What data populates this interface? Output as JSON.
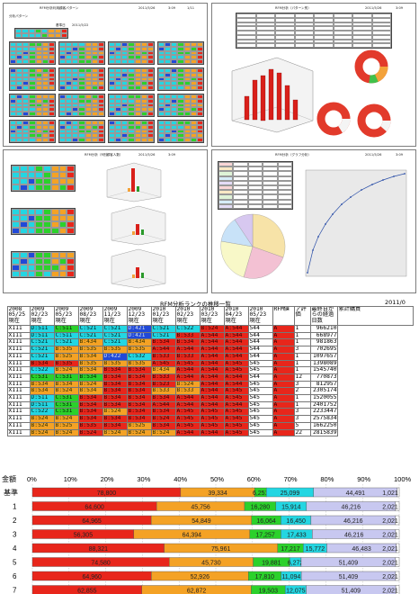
{
  "panels": {
    "p1": {
      "title": "RFM分析利用顧客パターン",
      "date": "2011/5/26",
      "time": "3:09",
      "page": "1/11",
      "subtitle": "分析パターン",
      "base_date_label": "基準日",
      "base_date": "2011/5/22"
    },
    "p2": {
      "title": "RFM分析（パターン別）",
      "date": "2011/5/26",
      "time": "3:09"
    },
    "p3": {
      "title": "RFM分析（R別顧客人数）",
      "date": "2011/5/26",
      "time": "3:09"
    },
    "p4": {
      "title": "RFM分析（グラフ分析）",
      "date": "2011/5/26",
      "time": "3:09"
    }
  },
  "bigtable": {
    "title": "RFM分析ランクの推移一覧",
    "year_right": "2011/0",
    "headers": [
      {
        "y": "2008",
        "d": "05/25",
        "s": "現在"
      },
      {
        "y": "2009",
        "d": "02/23",
        "s": "現在"
      },
      {
        "y": "2009",
        "d": "05/23",
        "s": "現在"
      },
      {
        "y": "2009",
        "d": "08/23",
        "s": "現在"
      },
      {
        "y": "2009",
        "d": "11/23",
        "s": "現在"
      },
      {
        "y": "2009",
        "d": "12/23",
        "s": "現在"
      },
      {
        "y": "2010",
        "d": "01/23",
        "s": "現在"
      },
      {
        "y": "2010",
        "d": "02/23",
        "s": "現在"
      },
      {
        "y": "2010",
        "d": "03/23",
        "s": "現在"
      },
      {
        "y": "2010",
        "d": "04/23",
        "s": "現在"
      },
      {
        "y": "2010",
        "d": "05/23",
        "s": "現在"
      }
    ],
    "rfm_header": "RFM値",
    "ext_header": "ア評価",
    "days_header": "最終日からの経過日数",
    "total_header": "累計購買",
    "rows": [
      [
        "X111",
        "D:511",
        "C:511",
        "C:521",
        "C:521",
        "D:421",
        "C:521",
        "C:522",
        "B:524",
        "A:544",
        "544",
        "A",
        "1",
        "966210"
      ],
      [
        "X111",
        "D:511",
        "C:511",
        "C:521",
        "C:521",
        "D:421",
        "C:521",
        "B:533",
        "A:544",
        "A:544",
        "544",
        "A",
        "1",
        "668977"
      ],
      [
        "X111",
        "C:521",
        "C:521",
        "B:434",
        "C:521",
        "B:434",
        "B:534",
        "B:534",
        "A:544",
        "A:544",
        "544",
        "A",
        "1",
        "981863"
      ],
      [
        "X111",
        "C:521",
        "B:535",
        "B:535",
        "B:535",
        "B:535",
        "A:544",
        "A:544",
        "A:544",
        "A:544",
        "544",
        "A",
        "3",
        "702695"
      ],
      [
        "X111",
        "C:521",
        "B:525",
        "B:534",
        "D:422",
        "C:532",
        "B:533",
        "B:533",
        "A:544",
        "A:544",
        "544",
        "A",
        "1",
        "1097657"
      ],
      [
        "X111",
        "B:534",
        "B:535",
        "B:535",
        "B:535",
        "B:535",
        "A:545",
        "A:545",
        "A:544",
        "A:545",
        "545",
        "A",
        "1",
        "1398089"
      ],
      [
        "X111",
        "C:522",
        "B:524",
        "B:534",
        "B:534",
        "B:534",
        "B:434",
        "A:544",
        "A:544",
        "A:545",
        "545",
        "A",
        "1",
        "1545740"
      ],
      [
        "X111",
        "C:531",
        "C:531",
        "B:534",
        "B:534",
        "B:534",
        "B:533",
        "A:544",
        "A:544",
        "A:544",
        "544",
        "A",
        "12",
        "770873"
      ],
      [
        "X111",
        "B:534",
        "B:534",
        "B:524",
        "B:534",
        "B:534",
        "B:523",
        "B:524",
        "A:544",
        "A:544",
        "545",
        "A",
        "3",
        "812957"
      ],
      [
        "X111",
        "B:534",
        "B:524",
        "B:534",
        "B:534",
        "B:534",
        "B:533",
        "B:533",
        "A:544",
        "A:545",
        "545",
        "A",
        "2",
        "2305174"
      ],
      [
        "X111",
        "D:511",
        "C:531",
        "B:534",
        "B:534",
        "B:534",
        "B:534",
        "A:544",
        "A:544",
        "A:545",
        "545",
        "A",
        "1",
        "1520055"
      ],
      [
        "X111",
        "D:511",
        "C:531",
        "B:534",
        "B:534",
        "B:534",
        "A:544",
        "A:544",
        "A:544",
        "A:544",
        "545",
        "A",
        "1",
        "2401752"
      ],
      [
        "X111",
        "C:522",
        "C:531",
        "B:534",
        "B:524",
        "B:534",
        "B:534",
        "A:545",
        "A:545",
        "A:545",
        "545",
        "A",
        "3",
        "2233447"
      ],
      [
        "X111",
        "B:524",
        "B:524",
        "B:534",
        "B:534",
        "B:534",
        "B:524",
        "A:545",
        "A:545",
        "A:545",
        "545",
        "A",
        "3",
        "2575834"
      ],
      [
        "X111",
        "B:524",
        "B:525",
        "B:535",
        "B:534",
        "B:525",
        "B:534",
        "A:545",
        "A:545",
        "A:545",
        "545",
        "A",
        "5",
        "1662250"
      ],
      [
        "X111",
        "B:524",
        "B:524",
        "B:524",
        "B:524",
        "B:524",
        "B:524",
        "A:544",
        "A:544",
        "A:545",
        "545",
        "A",
        "22",
        "2815839"
      ]
    ],
    "row_colors": [
      [
        "w",
        "c",
        "g",
        "c",
        "c",
        "b",
        "c",
        "c",
        "r",
        "r",
        "w",
        "r",
        "w",
        "w"
      ],
      [
        "w",
        "c",
        "c",
        "c",
        "c",
        "b",
        "c",
        "r",
        "r",
        "r",
        "w",
        "r",
        "w",
        "w"
      ],
      [
        "w",
        "c",
        "c",
        "o",
        "c",
        "o",
        "r",
        "r",
        "r",
        "r",
        "w",
        "r",
        "w",
        "w"
      ],
      [
        "w",
        "c",
        "o",
        "o",
        "o",
        "o",
        "r",
        "r",
        "r",
        "r",
        "w",
        "r",
        "w",
        "w"
      ],
      [
        "w",
        "c",
        "o",
        "o",
        "b",
        "c",
        "r",
        "r",
        "r",
        "r",
        "w",
        "r",
        "w",
        "w"
      ],
      [
        "w",
        "r",
        "r",
        "o",
        "o",
        "o",
        "r",
        "r",
        "r",
        "r",
        "w",
        "r",
        "w",
        "w"
      ],
      [
        "w",
        "c",
        "o",
        "o",
        "r",
        "r",
        "o",
        "r",
        "r",
        "r",
        "w",
        "r",
        "w",
        "w"
      ],
      [
        "w",
        "g",
        "g",
        "g",
        "r",
        "r",
        "r",
        "r",
        "r",
        "r",
        "w",
        "r",
        "w",
        "w"
      ],
      [
        "w",
        "o",
        "o",
        "o",
        "r",
        "r",
        "r",
        "o",
        "r",
        "r",
        "w",
        "r",
        "w",
        "w"
      ],
      [
        "w",
        "o",
        "o",
        "o",
        "r",
        "r",
        "o",
        "o",
        "r",
        "r",
        "w",
        "r",
        "w",
        "w"
      ],
      [
        "w",
        "c",
        "g",
        "r",
        "r",
        "r",
        "r",
        "r",
        "r",
        "r",
        "w",
        "r",
        "w",
        "w"
      ],
      [
        "w",
        "c",
        "g",
        "r",
        "r",
        "r",
        "r",
        "r",
        "r",
        "r",
        "w",
        "r",
        "w",
        "w"
      ],
      [
        "w",
        "c",
        "g",
        "r",
        "o",
        "r",
        "r",
        "r",
        "r",
        "r",
        "w",
        "r",
        "w",
        "w"
      ],
      [
        "w",
        "o",
        "o",
        "r",
        "r",
        "r",
        "r",
        "r",
        "r",
        "r",
        "w",
        "r",
        "w",
        "w"
      ],
      [
        "w",
        "o",
        "o",
        "r",
        "r",
        "o",
        "r",
        "r",
        "r",
        "r",
        "w",
        "r",
        "w",
        "w"
      ],
      [
        "w",
        "o",
        "o",
        "r",
        "o",
        "o",
        "o",
        "r",
        "r",
        "r",
        "w",
        "r",
        "w",
        "w"
      ]
    ]
  },
  "chart_data": {
    "type": "bar",
    "stacked": "percent",
    "xlim": [
      0,
      100
    ],
    "xticks": [
      "0%",
      "10%",
      "20%",
      "30%",
      "40%",
      "50%",
      "60%",
      "70%",
      "80%",
      "90%",
      "100%"
    ],
    "row_label_header": "金額",
    "categories": [
      "基準",
      "1",
      "2",
      "3",
      "4",
      "5",
      "6",
      "7"
    ],
    "series": [
      {
        "color": "#e8261b",
        "values": [
          78800,
          64600,
          64965,
          56305,
          88321,
          74580,
          64960,
          62855
        ]
      },
      {
        "color": "#f4a225",
        "values": [
          39334,
          45756,
          54849,
          64394,
          75961,
          45730,
          52926,
          62872
        ]
      },
      {
        "color": "#2bd12b",
        "values": [
          6251,
          16280,
          16064,
          17257,
          17217,
          19881,
          17810,
          19503
        ]
      },
      {
        "color": "#23d6e2",
        "values": [
          25099,
          15914,
          16450,
          17433,
          15772,
          6272,
          11094,
          12075
        ]
      },
      {
        "color": "#c8c8f0",
        "values": [
          44491,
          46216,
          46216,
          46216,
          46483,
          51409,
          51409,
          51409
        ]
      },
      {
        "color": "#ffffff",
        "values": [
          1021,
          2021,
          2021,
          2021,
          2021,
          2021,
          2021,
          2021
        ]
      }
    ],
    "labels": [
      [
        "78,800",
        "39,334",
        "6,251",
        "25,099",
        "44,491",
        "1,021"
      ],
      [
        "64,600",
        "45,756",
        "16,280",
        "15,914",
        "46,216",
        "2,021"
      ],
      [
        "64,965",
        "54,849",
        "16,064",
        "16,450",
        "46,216",
        "2,021"
      ],
      [
        "56,305",
        "64,394",
        "17,257",
        "17,433",
        "46,216",
        "2,021"
      ],
      [
        "88,321",
        "75,961",
        "17,217",
        "15,772",
        "46,483",
        "2,021"
      ],
      [
        "74,580",
        "45,730",
        "19,881",
        "6,272",
        "51,409",
        "2,021"
      ],
      [
        "64,960",
        "52,926",
        "17,810",
        "11,094",
        "51,409",
        "2,021"
      ],
      [
        "62,855",
        "62,872",
        "19,503",
        "12,075",
        "51,409",
        "2,021"
      ]
    ]
  }
}
